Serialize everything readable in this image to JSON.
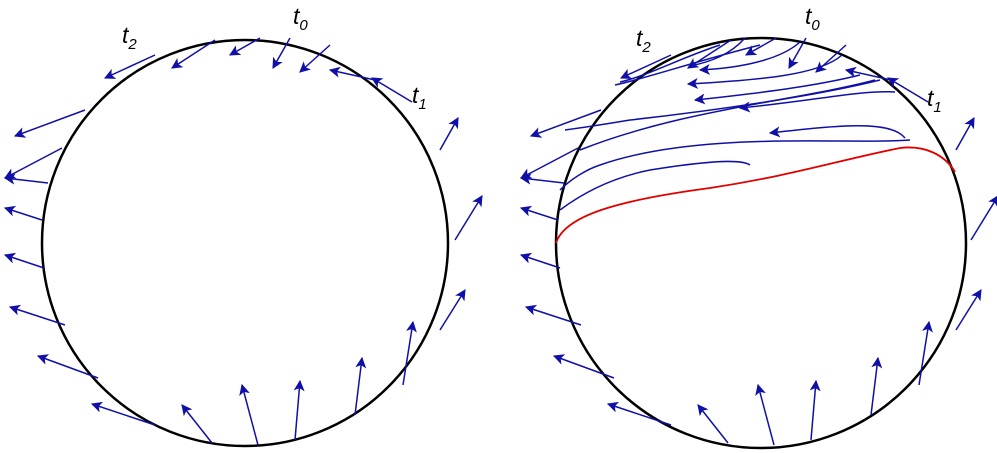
{
  "left_panel": {
    "labels": [
      {
        "base": "t",
        "sub": "0"
      },
      {
        "base": "t",
        "sub": "1"
      },
      {
        "base": "t",
        "sub": "2"
      }
    ]
  },
  "right_panel": {
    "labels": [
      {
        "base": "t",
        "sub": "0"
      },
      {
        "base": "t",
        "sub": "1"
      },
      {
        "base": "t",
        "sub": "2"
      }
    ]
  }
}
